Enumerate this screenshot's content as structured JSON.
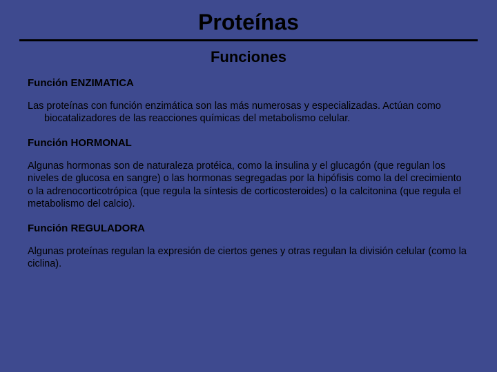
{
  "colors": {
    "background": "#3e4a8f",
    "text": "#000000",
    "divider": "#000000"
  },
  "typography": {
    "title_fontsize": 32,
    "subtitle_fontsize": 22,
    "heading_fontsize": 15,
    "body_fontsize": 14.5,
    "font_family": "Arial"
  },
  "title": "Proteínas",
  "subtitle": "Funciones",
  "sections": [
    {
      "heading": "Función ENZIMATICA",
      "body": "Las proteínas con función enzimática son las más numerosas y especializadas. Actúan como biocatalizadores de las reacciones químicas del metabolismo celular.",
      "indented": true
    },
    {
      "heading": "Función HORMONAL",
      "body": "Algunas hormonas son de naturaleza protéica, como la insulina y el glucagón (que regulan los niveles de glucosa en sangre) o las hormonas segregadas por la hipófisis como la del crecimiento o la adrenocorticotrópica (que regula la síntesis de corticosteroides) o la calcitonina (que regula el metabolismo del calcio).",
      "indented": false
    },
    {
      "heading": "Función REGULADORA",
      "body": "Algunas proteínas regulan la expresión de ciertos genes y otras regulan la división celular (como la ciclina).",
      "indented": false
    }
  ]
}
